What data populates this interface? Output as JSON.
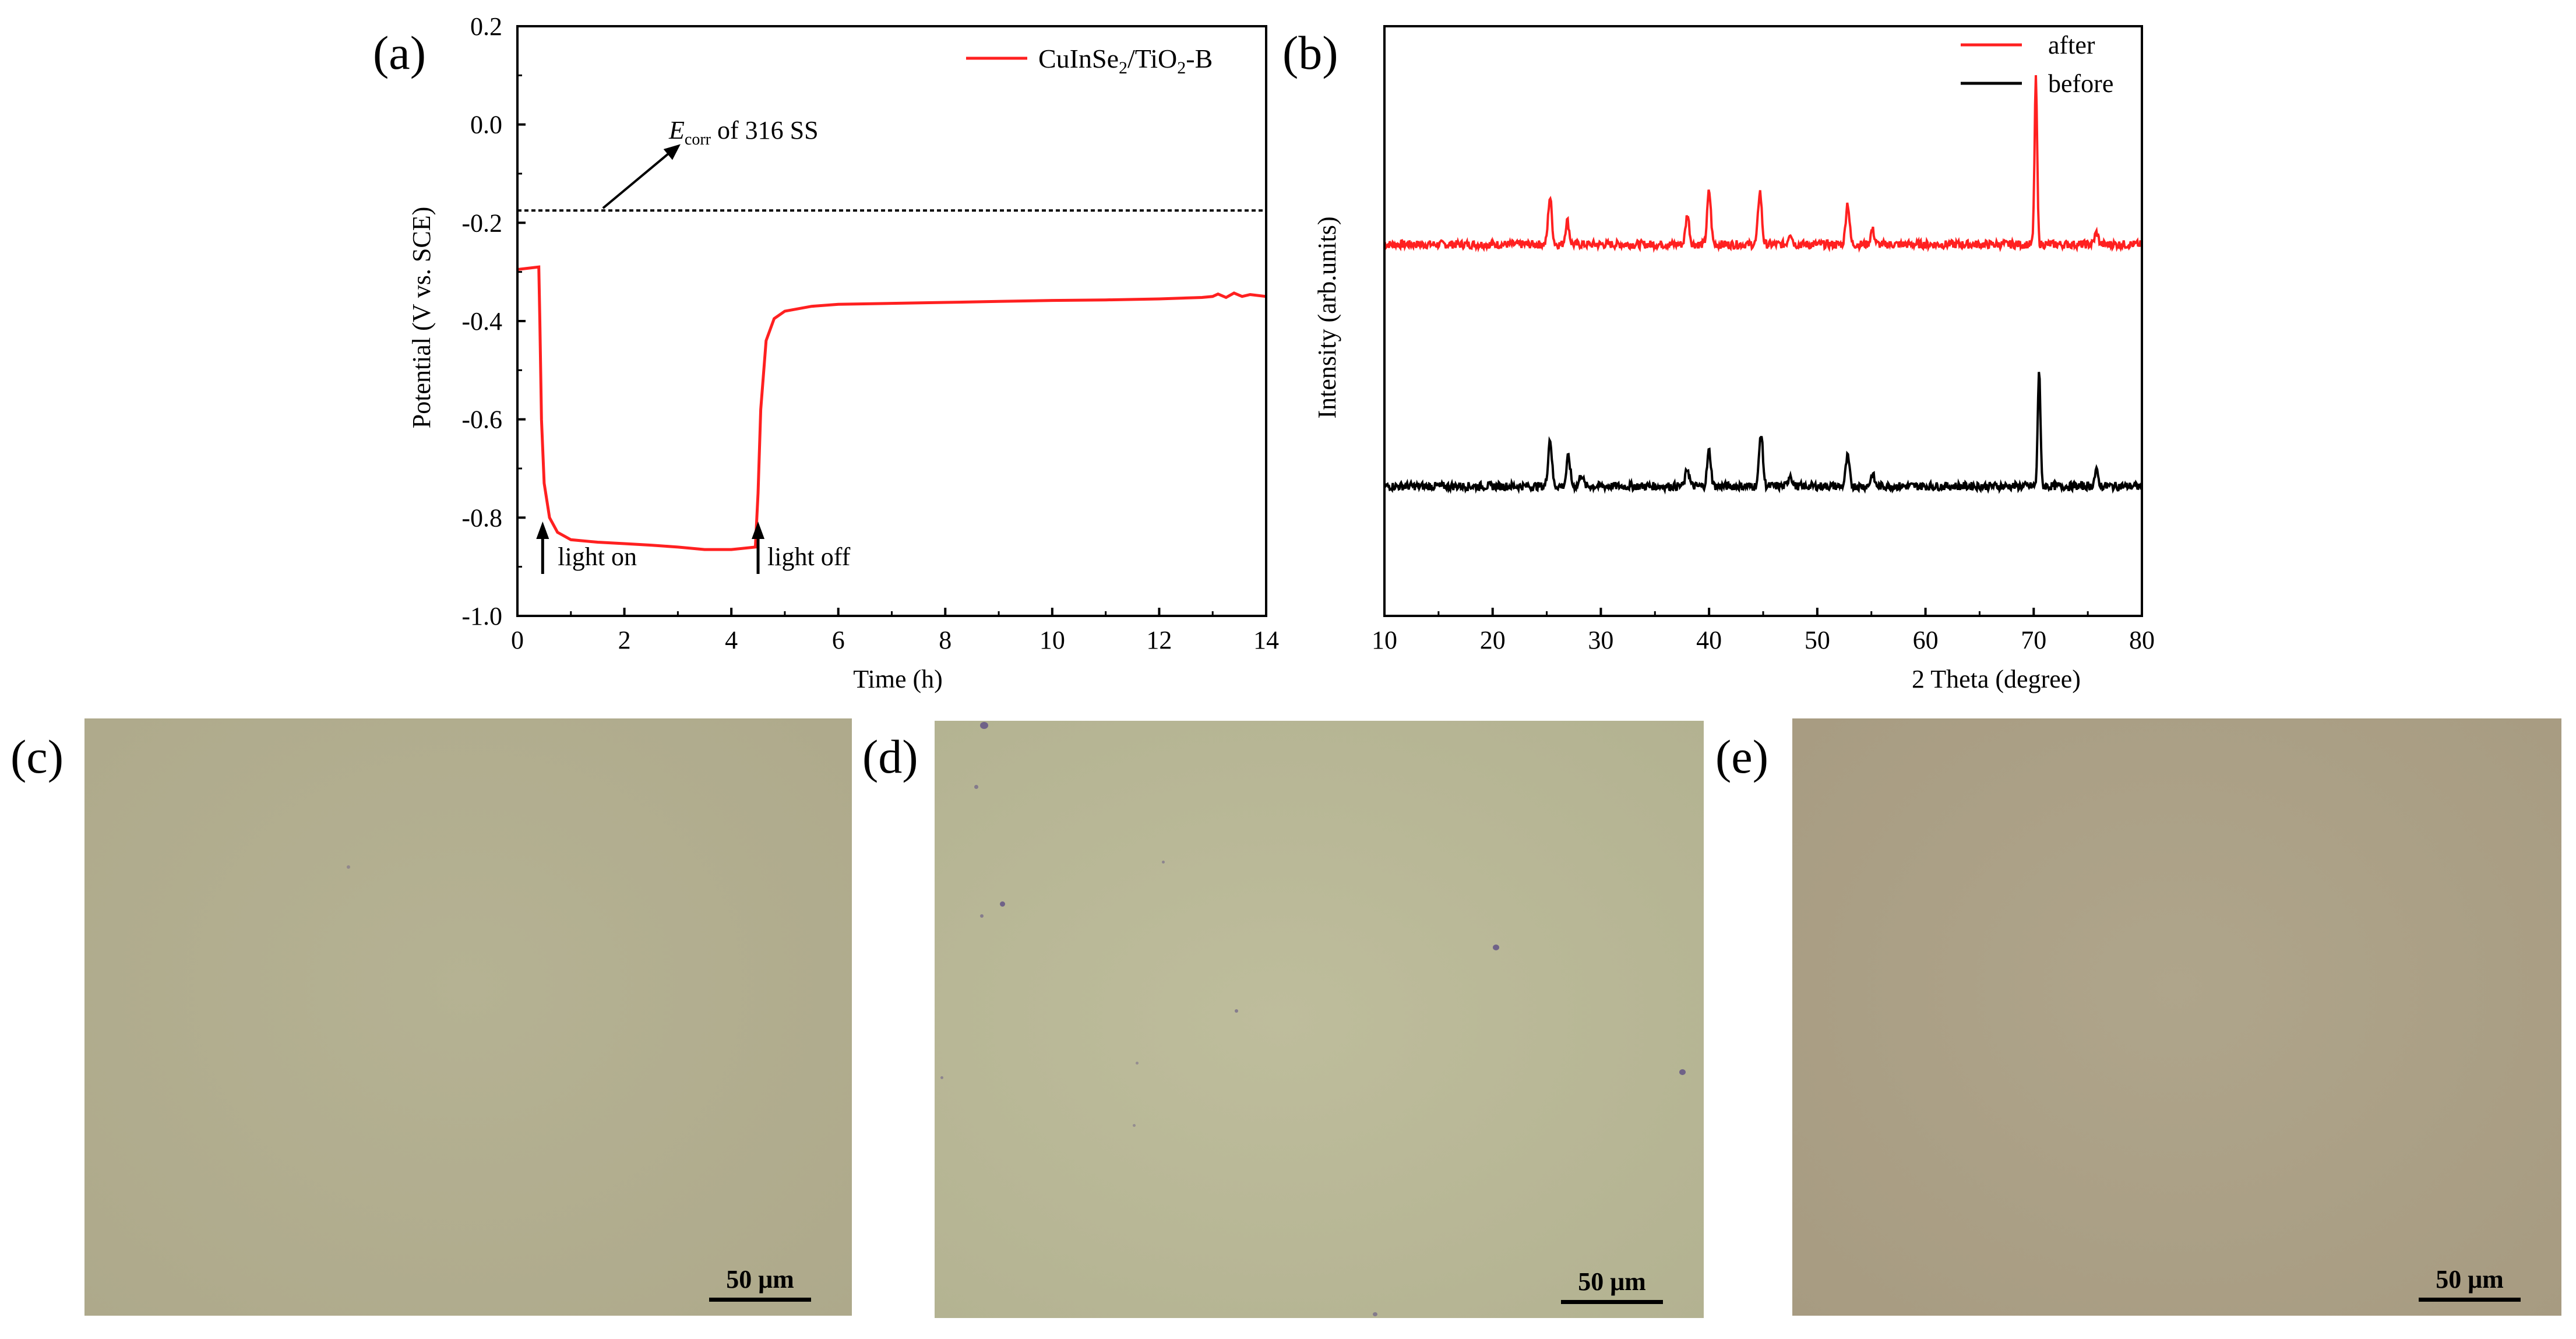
{
  "colors": {
    "red": "#ff2020",
    "black": "#000000",
    "photo_c": "#b1ae90",
    "photo_d": "#b7b796",
    "photo_e": "#ab9f86"
  },
  "chart_data": [
    {
      "id": "a",
      "type": "line",
      "panel_label": "(a)",
      "xlabel": "Time (h)",
      "ylabel": "Potential (V vs. SCE)",
      "xlim": [
        0,
        14
      ],
      "ylim": [
        -1.0,
        0.2
      ],
      "xticks": [
        "0",
        "2",
        "4",
        "6",
        "8",
        "10",
        "12",
        "14"
      ],
      "yticks": [
        "0.2",
        "0.0",
        "-0.2",
        "-0.4",
        "-0.6",
        "-0.8",
        "-1.0"
      ],
      "legend": "CuInSe2/TiO2-B",
      "series": [
        {
          "name": "CuInSe2/TiO2-B",
          "color": "#ff2020",
          "x": [
            0,
            0.4,
            0.42,
            0.45,
            0.5,
            0.6,
            0.75,
            1.0,
            1.5,
            2.0,
            2.5,
            3.0,
            3.5,
            4.0,
            4.45,
            4.5,
            4.55,
            4.65,
            4.8,
            5.0,
            5.5,
            6.0,
            7.0,
            8.0,
            9.0,
            10.0,
            11.0,
            12.0,
            12.8,
            13.0,
            13.1,
            13.25,
            13.4,
            13.55,
            13.7,
            14.0
          ],
          "y": [
            -0.295,
            -0.29,
            -0.4,
            -0.6,
            -0.73,
            -0.8,
            -0.83,
            -0.845,
            -0.85,
            -0.853,
            -0.856,
            -0.86,
            -0.865,
            -0.865,
            -0.86,
            -0.75,
            -0.58,
            -0.44,
            -0.395,
            -0.38,
            -0.37,
            -0.366,
            -0.364,
            -0.362,
            -0.36,
            -0.358,
            -0.357,
            -0.355,
            -0.352,
            -0.35,
            -0.345,
            -0.352,
            -0.343,
            -0.35,
            -0.346,
            -0.35
          ]
        }
      ],
      "reference_line": {
        "y": -0.175,
        "label_main": "E",
        "label_sub": "corr",
        "label_rest": " of 316 SS"
      },
      "annotations": [
        {
          "text": "light on",
          "x": 0.45
        },
        {
          "text": "light off",
          "x": 4.5
        }
      ]
    },
    {
      "id": "b",
      "type": "line",
      "panel_label": "(b)",
      "xlabel": "2 Theta (degree)",
      "ylabel": "Intensity (arb.units)",
      "xlim": [
        10,
        80
      ],
      "ylim": [
        0,
        100
      ],
      "xticks": [
        "10",
        "20",
        "30",
        "40",
        "50",
        "60",
        "70",
        "80"
      ],
      "legend_order": [
        "after",
        "before"
      ],
      "series": [
        {
          "name": "after",
          "color": "#ff2020",
          "baseline": 63,
          "peaks": [
            [
              25.3,
              8
            ],
            [
              26.9,
              4
            ],
            [
              38.0,
              5
            ],
            [
              40.0,
              9
            ],
            [
              44.7,
              9
            ],
            [
              47.5,
              2
            ],
            [
              52.8,
              7
            ],
            [
              55.1,
              2.5
            ],
            [
              70.2,
              28
            ],
            [
              75.8,
              2
            ]
          ]
        },
        {
          "name": "before",
          "color": "#000000",
          "baseline": 22,
          "peaks": [
            [
              25.3,
              8
            ],
            [
              27.0,
              5
            ],
            [
              28.2,
              2
            ],
            [
              38.0,
              3
            ],
            [
              40.0,
              6
            ],
            [
              44.8,
              9
            ],
            [
              47.5,
              2
            ],
            [
              52.8,
              5
            ],
            [
              55.1,
              2
            ],
            [
              70.5,
              20
            ],
            [
              75.8,
              2.5
            ]
          ]
        }
      ]
    }
  ],
  "photos": [
    {
      "label": "(c)",
      "scale": "50 μm"
    },
    {
      "label": "(d)",
      "scale": "50 μm"
    },
    {
      "label": "(e)",
      "scale": "50 μm"
    }
  ]
}
